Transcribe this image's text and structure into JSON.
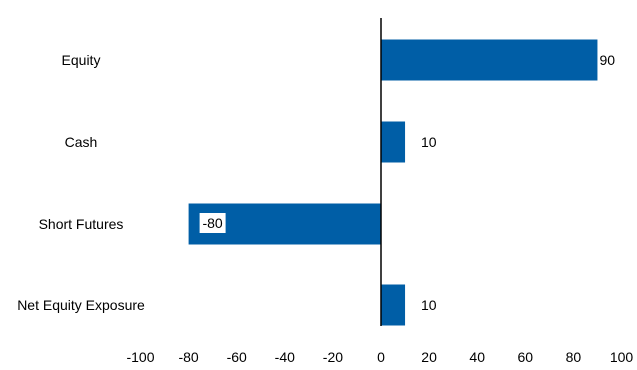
{
  "chart_data": {
    "type": "bar",
    "orientation": "horizontal",
    "categories": [
      "Equity",
      "Cash",
      "Short Futures",
      "Net Equity Exposure"
    ],
    "values": [
      90,
      10,
      -80,
      10
    ],
    "data_labels": [
      "90",
      "10",
      "-80",
      "10"
    ],
    "xlim": [
      -100,
      100
    ],
    "xticks": [
      -100,
      -80,
      -60,
      -40,
      -20,
      0,
      20,
      40,
      60,
      80,
      100
    ],
    "grid": false,
    "bar_color": "#005EA6",
    "title": "",
    "xlabel": "",
    "ylabel": ""
  }
}
